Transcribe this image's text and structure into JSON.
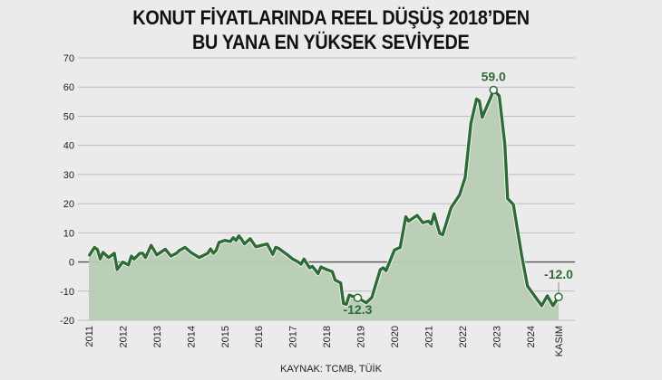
{
  "chart_data": {
    "type": "area",
    "title_lines": [
      "KONUT FİYATLARINDA REEL DÜŞÜŞ 2018’DEN",
      "BU YANA EN YÜKSEK SEVİYEDE"
    ],
    "source": "KAYNAK: TCMB, TÜİK",
    "xlabel": "",
    "ylabel": "",
    "ylim": [
      -20,
      70
    ],
    "yticks": [
      70,
      60,
      50,
      40,
      30,
      20,
      10,
      0,
      -10,
      -20
    ],
    "xticks": [
      "2011",
      "2012",
      "2013",
      "2014",
      "2015",
      "2016",
      "2017",
      "2018",
      "2019",
      "2020",
      "2021",
      "2022",
      "2023",
      "2024",
      "KASIM"
    ],
    "grid": true,
    "colors": {
      "line": "#2f6b37",
      "fill": "#b8ccb4",
      "grid": "#bdbdbd",
      "zero": "#555555",
      "label": "#2f6b37"
    },
    "annotations": [
      {
        "x": "2018-12",
        "y": -12.3,
        "text": "-12.3"
      },
      {
        "x": "2022-12",
        "y": 59.0,
        "text": "59.0"
      },
      {
        "x": "2024-11",
        "y": -12.0,
        "text": "-12.0"
      }
    ],
    "points": [
      [
        "2011-01",
        2
      ],
      [
        "2011-03",
        5
      ],
      [
        "2011-04",
        4.3
      ],
      [
        "2011-05",
        1
      ],
      [
        "2011-06",
        3.3
      ],
      [
        "2011-08",
        1.5
      ],
      [
        "2011-10",
        3
      ],
      [
        "2011-11",
        -2.6
      ],
      [
        "2012-01",
        0
      ],
      [
        "2012-03",
        -1
      ],
      [
        "2012-04",
        2
      ],
      [
        "2012-05",
        1
      ],
      [
        "2012-07",
        3
      ],
      [
        "2012-08",
        3
      ],
      [
        "2012-09",
        1.5
      ],
      [
        "2012-11",
        5.7
      ],
      [
        "2013-01",
        2.4
      ],
      [
        "2013-04",
        4.4
      ],
      [
        "2013-06",
        2
      ],
      [
        "2013-08",
        3
      ],
      [
        "2013-09",
        4
      ],
      [
        "2013-11",
        5
      ],
      [
        "2014-01",
        3.3
      ],
      [
        "2014-04",
        1.5
      ],
      [
        "2014-07",
        3
      ],
      [
        "2014-08",
        4.5
      ],
      [
        "2014-09",
        3
      ],
      [
        "2014-10",
        4
      ],
      [
        "2014-11",
        6.7
      ],
      [
        "2015-01",
        7.4
      ],
      [
        "2015-03",
        7
      ],
      [
        "2015-04",
        8.3
      ],
      [
        "2015-05",
        7.4
      ],
      [
        "2015-06",
        9
      ],
      [
        "2015-07",
        7.7
      ],
      [
        "2015-08",
        6.2
      ],
      [
        "2015-10",
        8
      ],
      [
        "2015-12",
        5.2
      ],
      [
        "2016-02",
        5.7
      ],
      [
        "2016-04",
        6.2
      ],
      [
        "2016-06",
        2.6
      ],
      [
        "2016-07",
        5
      ],
      [
        "2016-08",
        4.7
      ],
      [
        "2016-11",
        2.6
      ],
      [
        "2017-01",
        1
      ],
      [
        "2017-03",
        0
      ],
      [
        "2017-04",
        -0.8
      ],
      [
        "2017-05",
        1
      ],
      [
        "2017-07",
        -2
      ],
      [
        "2017-08",
        -1.5
      ],
      [
        "2017-10",
        -4
      ],
      [
        "2017-11",
        -1.7
      ],
      [
        "2018-01",
        -2.6
      ],
      [
        "2018-03",
        -3.3
      ],
      [
        "2018-04",
        -6.2
      ],
      [
        "2018-06",
        -7.2
      ],
      [
        "2018-07",
        -14.3
      ],
      [
        "2018-08",
        -14.5
      ],
      [
        "2018-09",
        -11.4
      ],
      [
        "2018-12",
        -12.3
      ],
      [
        "2019-03",
        -14
      ],
      [
        "2019-05",
        -12.2
      ],
      [
        "2019-08",
        -2.6
      ],
      [
        "2019-09",
        -2
      ],
      [
        "2019-10",
        -3
      ],
      [
        "2020-01",
        4.1
      ],
      [
        "2020-03",
        5
      ],
      [
        "2020-05",
        15.5
      ],
      [
        "2020-06",
        14
      ],
      [
        "2020-09",
        16
      ],
      [
        "2020-11",
        13.5
      ],
      [
        "2021-01",
        14
      ],
      [
        "2021-02",
        13
      ],
      [
        "2021-03",
        16.5
      ],
      [
        "2021-05",
        9.8
      ],
      [
        "2021-06",
        9.3
      ],
      [
        "2021-09",
        18.6
      ],
      [
        "2021-12",
        23
      ],
      [
        "2022-02",
        29
      ],
      [
        "2022-04",
        47.6
      ],
      [
        "2022-06",
        55.9
      ],
      [
        "2022-07",
        55.3
      ],
      [
        "2022-08",
        49.6
      ],
      [
        "2022-11",
        56.4
      ],
      [
        "2022-12",
        59.0
      ],
      [
        "2023-02",
        57
      ],
      [
        "2023-04",
        40.4
      ],
      [
        "2023-05",
        21.7
      ],
      [
        "2023-07",
        19.7
      ],
      [
        "2023-10",
        2
      ],
      [
        "2023-12",
        -8.3
      ],
      [
        "2024-05",
        -15
      ],
      [
        "2024-07",
        -11.6
      ],
      [
        "2024-09",
        -15
      ],
      [
        "2024-11",
        -12.0
      ]
    ]
  }
}
